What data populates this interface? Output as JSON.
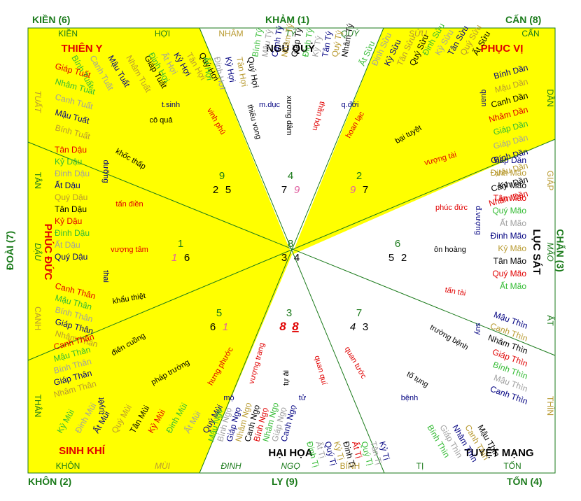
{
  "directions": {
    "kien": "KIỀN (6)",
    "kham": "KHẢM (1)",
    "can_nw": "CẤN (8)",
    "doai": "ĐOÀI (7)",
    "chan": "CHẤN (3)",
    "khon": "KHÔN (2)",
    "ly": "LY (9)",
    "ton": "TỐN (4)"
  },
  "sectors": {
    "nw": "THIÊN Y",
    "n": "NGŨ QUỶ",
    "ne": "PHỤC VỊ",
    "w": "PHÚC ĐỨC",
    "e": "LỤC SÁT",
    "sw": "SINH KHÍ",
    "s": "HẠI HỌA",
    "se": "TUYỆT MẠNG"
  },
  "rim": {
    "top": [
      "KIỀN",
      "HỢI",
      "NHÂM",
      "TÝ",
      "QUÝ",
      "SỬU",
      "CẤN"
    ],
    "bottom": [
      "KHÔN",
      "MÙI",
      "ĐINH",
      "NGỌ",
      "BÍNH",
      "TỊ",
      "TỐN"
    ],
    "left": [
      "TUẤT",
      "TÂN",
      "DẬU",
      "CANH",
      "THÂN"
    ],
    "right": [
      "DẦN",
      "GIÁP",
      "MÃO",
      "ẤT",
      "THÌN"
    ]
  },
  "numbers": {
    "center": [
      "8",
      "3",
      "4"
    ],
    "nw": [
      "9",
      "2",
      "5"
    ],
    "n": [
      "4",
      "7",
      "9"
    ],
    "ne": [
      "2",
      "9",
      "7"
    ],
    "w": [
      "1",
      "1",
      "6"
    ],
    "e": [
      "6",
      "5",
      "2"
    ],
    "sw": [
      "5",
      "6",
      "1"
    ],
    "s": [
      "3",
      "8",
      "8"
    ],
    "se": [
      "7",
      "4",
      "3"
    ]
  },
  "stars": {
    "t_sinh": "t.sinh",
    "co_qua": "cô quả",
    "khoc_thap": "khốc thấp",
    "vinh_phu": "vinh phú",
    "m_duc": "m.dục",
    "thieu_vong": "thiếu vong",
    "xuong_dam": "xương dâm",
    "than_hon": "thần hôn",
    "q_doi": "q.đới",
    "hoan_lac": "hoan lạc",
    "bai_tuyet": "bại tuyệt",
    "vuong_tai": "vượng tài",
    "tan_dien": "tấn điền",
    "vuong_tam": "vượng tâm",
    "khau_thiet": "khẩu thiệt",
    "phuc_duc_star": "phúc đức",
    "on_hoang": "ôn hoàng",
    "tan_tai": "tấn tài",
    "dien_cuong": "điên cuồng",
    "phap_truong": "pháp trường",
    "hung_phuoc": "hưng phước",
    "vuong_trang": "vượng trang",
    "tu_ai": "tự ải",
    "quan_qui": "quan quí",
    "quan_tuoc": "quan tước",
    "truong_benh": "trường bệnh",
    "to_tung": "tố tụng",
    "quan": "quan",
    "duong": "dưỡng",
    "thai": "thai",
    "tuyet": "tuyệt",
    "mo": "mộ",
    "tu": "tử",
    "benh": "bệnh",
    "suy": "suy",
    "d_vuong": "đ.vượng"
  },
  "ganzhi": {
    "nw_outer": [
      "Bính Tuất",
      "Canh Tuất",
      "Mậu Tuất",
      "Nhâm Tuất",
      "Giáp Tuất"
    ],
    "nw_inner": [
      "Đinh Hợi",
      "Ất Hợi",
      "Kỷ Hợi",
      "Tân Hợi",
      "Quý Hợi"
    ],
    "nw_left": [
      "Giáp Tuất",
      "Nhâm Tuất",
      "Canh Tuất",
      "Mậu Tuất",
      "Bính Tuất"
    ],
    "n_left": [
      "Ất Hợi",
      "Đinh Hợi",
      "Kỷ Hợi",
      "Tân Hợi",
      "Quý Hợi"
    ],
    "n_tys": [
      "Bính Tý",
      "Mậu Tý",
      "Canh Tý",
      "Nhâm Tý",
      "Giáp Tý"
    ],
    "n_right": [
      "Đinh Tý",
      "Kỷ Tý",
      "Tân Tý",
      "Quý Tý",
      "Nhâm Tý"
    ],
    "ne_suu": [
      "Ất Sửu",
      "Đinh Sửu",
      "Kỷ Sửu",
      "Tân Sửu",
      "Quý Sửu"
    ],
    "ne_in": [
      "Đinh Sửu",
      "Kỷ Sửu",
      "Tân Sửu",
      "Quý Sửu",
      "Ất Sửu"
    ],
    "w_dau": [
      "Tân Dậu",
      "Kỷ Dậu",
      "Đinh Dậu",
      "Ất Dậu",
      "Quý Dậu",
      "Tân Dậu",
      "Kỷ Dậu",
      "Đinh Dậu",
      "Ất Dậu",
      "Quý Dậu"
    ],
    "w_than": [
      "Canh Thân",
      "Mậu Thân",
      "Bính Thân",
      "Giáp Thân",
      "Nhâm Thân"
    ],
    "sw_than": [
      "Canh Thân",
      "Mậu Thân",
      "Bính Thân",
      "Giáp Thân",
      "Nhâm Thân"
    ],
    "sw_mui": [
      "Kỷ Mùi",
      "Đinh Mùi",
      "Ất Mùi",
      "Quý Mùi",
      "Tân Mùi",
      "Kỷ Mùi",
      "Đinh Mùi",
      "Ất Mùi",
      "Quý Mùi"
    ],
    "s_ngo": [
      "Mậu Ngọ",
      "Bính Ngọ",
      "Giáp Ngọ",
      "Nhâm Ngọ",
      "Canh Ngọ",
      "Bính Ngọ",
      "Nhâm Ngọ",
      "Giáp Ngọ",
      "Canh Ngọ"
    ],
    "s_ti": [
      "Đinh Tị",
      "Ất Tị",
      "Quý Tị",
      "Kỷ Tị",
      "Đinh Tị",
      "Ất Tị",
      "Quý Tị",
      "Tân Tị",
      "Kỷ Tị"
    ],
    "se_thin": [
      "Bính Thìn",
      "Giáp Thìn",
      "Nhâm Thìn",
      "Canh Thìn",
      "Mậu Thìn"
    ],
    "e_dan": [
      "Bính Dần",
      "Mậu Dần",
      "Canh Dần",
      "Nhâm Dần",
      "Giáp Dần",
      "Giáp Dần",
      "Bính Dần",
      "Mậu Dần",
      "Canh Dần",
      "Nhâm Dần"
    ],
    "e_mao": [
      "Giáp Dần",
      "Đinh Mão",
      "Kỷ Mão",
      "Tân Mão",
      "Quý Mão",
      "Ất Mão",
      "Đinh Mão",
      "Kỷ Mão",
      "Tân Mão",
      "Quý Mão",
      "Ất Mão"
    ],
    "e_thin": [
      "Mậu Thìn",
      "Canh Thìn",
      "Nhâm Thìn",
      "Giáp Thìn",
      "Bính Thìn",
      "Mậu Thìn",
      "Canh Thìn"
    ]
  },
  "colors": {
    "yellow": "#ffff00",
    "green": "#1a7a1a",
    "red": "#e00000",
    "pink": "#e060a0",
    "olive": "#b89a30",
    "lime": "#33bb33",
    "gray": "#a0a0a0",
    "navy": "#000080"
  }
}
